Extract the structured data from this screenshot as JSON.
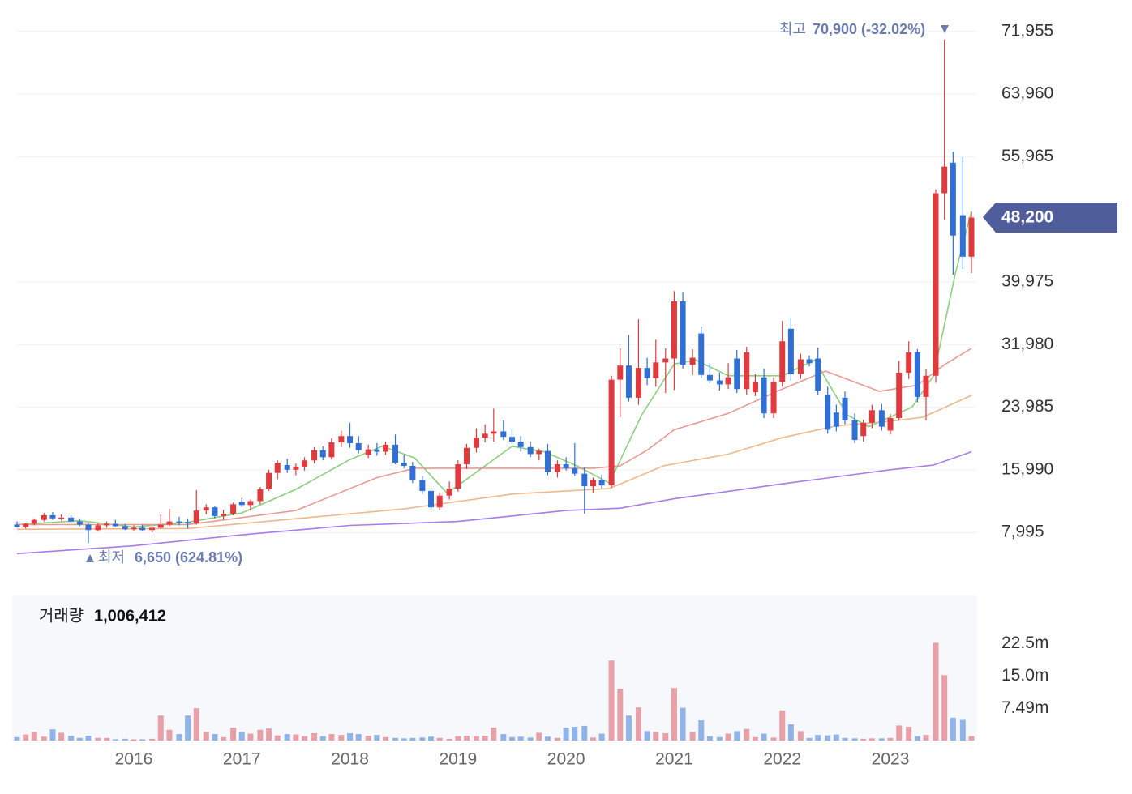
{
  "chart_data": {
    "type": "candlestick",
    "up_color": "#e03a3e",
    "down_color": "#2f6fd6",
    "xlim": [
      2014.875,
      2023.765
    ],
    "xticks": [
      2016,
      2017,
      2018,
      2019,
      2020,
      2021,
      2022,
      2023
    ],
    "ylim": [
      1500,
      73900
    ],
    "yticks": [
      {
        "value": 7995,
        "label": "7,995"
      },
      {
        "value": 15990,
        "label": "15,990"
      },
      {
        "value": 23985,
        "label": "23,985"
      },
      {
        "value": 31980,
        "label": "31,980"
      },
      {
        "value": 39975,
        "label": "39,975"
      },
      {
        "value": 55965,
        "label": "55,965"
      },
      {
        "value": 63960,
        "label": "63,960"
      },
      {
        "value": 71955,
        "label": "71,955"
      }
    ],
    "grid": true,
    "annotations": {
      "high_label": "최고",
      "high_value": "70,900 (-32.02%)",
      "low_label": "최저",
      "low_value": "6,650 (624.81%)",
      "current_price": "48,200"
    },
    "x": [
      2014.92,
      2015.0,
      2015.08,
      2015.17,
      2015.25,
      2015.33,
      2015.42,
      2015.5,
      2015.58,
      2015.67,
      2015.75,
      2015.83,
      2015.92,
      2016.0,
      2016.08,
      2016.17,
      2016.25,
      2016.33,
      2016.42,
      2016.5,
      2016.58,
      2016.67,
      2016.75,
      2016.83,
      2016.92,
      2017.0,
      2017.08,
      2017.17,
      2017.25,
      2017.33,
      2017.42,
      2017.5,
      2017.58,
      2017.67,
      2017.75,
      2017.83,
      2017.92,
      2018.0,
      2018.08,
      2018.17,
      2018.25,
      2018.33,
      2018.42,
      2018.5,
      2018.58,
      2018.67,
      2018.75,
      2018.83,
      2018.92,
      2019.0,
      2019.08,
      2019.17,
      2019.25,
      2019.33,
      2019.42,
      2019.5,
      2019.58,
      2019.67,
      2019.75,
      2019.83,
      2019.92,
      2020.0,
      2020.08,
      2020.17,
      2020.25,
      2020.33,
      2020.42,
      2020.5,
      2020.58,
      2020.67,
      2020.75,
      2020.83,
      2020.92,
      2021.0,
      2021.08,
      2021.17,
      2021.25,
      2021.33,
      2021.42,
      2021.5,
      2021.58,
      2021.67,
      2021.75,
      2021.83,
      2021.92,
      2022.0,
      2022.08,
      2022.17,
      2022.25,
      2022.33,
      2022.42,
      2022.5,
      2022.58,
      2022.67,
      2022.75,
      2022.83,
      2022.92,
      2023.0,
      2023.08,
      2023.17,
      2023.25,
      2023.33,
      2023.42,
      2023.5,
      2023.58,
      2023.67,
      2023.75
    ],
    "candles": [
      [
        9000,
        9400,
        8600,
        8700
      ],
      [
        8700,
        9200,
        8500,
        9100
      ],
      [
        9100,
        9800,
        8900,
        9600
      ],
      [
        9600,
        10500,
        9400,
        10200
      ],
      [
        10200,
        10600,
        9600,
        9800
      ],
      [
        9800,
        10300,
        9500,
        9900
      ],
      [
        9900,
        10200,
        9300,
        9400
      ],
      [
        9400,
        9800,
        8800,
        9000
      ],
      [
        9000,
        9200,
        6650,
        8300
      ],
      [
        8300,
        9200,
        8100,
        8900
      ],
      [
        8900,
        9400,
        8600,
        9100
      ],
      [
        9100,
        9600,
        8700,
        8800
      ],
      [
        8800,
        9100,
        8300,
        8400
      ],
      [
        8400,
        8900,
        8200,
        8600
      ],
      [
        8600,
        9000,
        8200,
        8300
      ],
      [
        8300,
        8800,
        8000,
        8600
      ],
      [
        8600,
        10300,
        8400,
        9000
      ],
      [
        9000,
        11000,
        8800,
        9400
      ],
      [
        9400,
        10000,
        8900,
        9300
      ],
      [
        9300,
        9800,
        8500,
        9200
      ],
      [
        9200,
        13400,
        9000,
        10800
      ],
      [
        10800,
        11600,
        10300,
        11200
      ],
      [
        11200,
        11400,
        9800,
        10100
      ],
      [
        10100,
        10900,
        9700,
        10400
      ],
      [
        10400,
        11800,
        10200,
        11600
      ],
      [
        11900,
        12400,
        11200,
        11500
      ],
      [
        11500,
        12200,
        10800,
        12000
      ],
      [
        12000,
        13800,
        11600,
        13500
      ],
      [
        13500,
        16000,
        13300,
        15600
      ],
      [
        15600,
        17200,
        14800,
        16900
      ],
      [
        16600,
        17400,
        15600,
        16000
      ],
      [
        16000,
        16800,
        15300,
        16400
      ],
      [
        16400,
        17600,
        15900,
        17200
      ],
      [
        17200,
        18900,
        16800,
        18500
      ],
      [
        18500,
        19000,
        17200,
        17600
      ],
      [
        17600,
        20000,
        17300,
        19500
      ],
      [
        19500,
        21000,
        18900,
        20300
      ],
      [
        20300,
        22000,
        18800,
        19400
      ],
      [
        19400,
        20300,
        18100,
        18500
      ],
      [
        17900,
        19200,
        17500,
        18600
      ],
      [
        18600,
        19400,
        17800,
        18300
      ],
      [
        18300,
        19600,
        17900,
        19200
      ],
      [
        19200,
        20500,
        16700,
        16900
      ],
      [
        16900,
        17900,
        16200,
        16500
      ],
      [
        16500,
        17000,
        14300,
        14700
      ],
      [
        14700,
        15200,
        12900,
        13300
      ],
      [
        13300,
        13700,
        10900,
        11200
      ],
      [
        11200,
        13100,
        10800,
        12700
      ],
      [
        12700,
        14500,
        12200,
        13600
      ],
      [
        13600,
        17200,
        13200,
        16700
      ],
      [
        16700,
        19300,
        16100,
        18800
      ],
      [
        18800,
        21300,
        18200,
        20100
      ],
      [
        20100,
        21800,
        19500,
        20600
      ],
      [
        20600,
        23800,
        19600,
        20900
      ],
      [
        20900,
        22300,
        19800,
        20200
      ],
      [
        20200,
        21200,
        19300,
        19600
      ],
      [
        19600,
        20300,
        18300,
        18900
      ],
      [
        18900,
        19600,
        17600,
        18000
      ],
      [
        18000,
        18700,
        17200,
        18400
      ],
      [
        18400,
        19300,
        15300,
        15700
      ],
      [
        15700,
        17200,
        15000,
        16700
      ],
      [
        16700,
        17600,
        15900,
        16200
      ],
      [
        16200,
        19400,
        15200,
        15500
      ],
      [
        15500,
        16300,
        10400,
        13900
      ],
      [
        13900,
        15000,
        13100,
        14700
      ],
      [
        14700,
        15400,
        13600,
        14000
      ],
      [
        14000,
        28000,
        13700,
        27500
      ],
      [
        27500,
        31500,
        22700,
        29300
      ],
      [
        29300,
        33200,
        24700,
        25200
      ],
      [
        25200,
        35200,
        24300,
        29000
      ],
      [
        29000,
        30300,
        26800,
        27700
      ],
      [
        27700,
        32600,
        26600,
        29700
      ],
      [
        29700,
        31500,
        25800,
        30200
      ],
      [
        30200,
        38800,
        26200,
        37500
      ],
      [
        37500,
        38700,
        28900,
        29400
      ],
      [
        29400,
        31400,
        28100,
        30300
      ],
      [
        33400,
        34300,
        27700,
        28100
      ],
      [
        28100,
        29600,
        27000,
        27400
      ],
      [
        27400,
        28400,
        26100,
        26900
      ],
      [
        26900,
        29600,
        26300,
        27800
      ],
      [
        30200,
        31300,
        25800,
        26300
      ],
      [
        26300,
        31700,
        25600,
        31000
      ],
      [
        25900,
        28200,
        25400,
        27200
      ],
      [
        27800,
        28900,
        22600,
        23200
      ],
      [
        23200,
        27800,
        22600,
        27200
      ],
      [
        27200,
        35000,
        26600,
        32400
      ],
      [
        34000,
        35400,
        27400,
        28200
      ],
      [
        28200,
        30800,
        27600,
        30100
      ],
      [
        30100,
        30600,
        29200,
        29600
      ],
      [
        30200,
        31600,
        25600,
        26100
      ],
      [
        25600,
        26600,
        20600,
        21100
      ],
      [
        23300,
        24300,
        20900,
        21500
      ],
      [
        25200,
        26000,
        21800,
        22300
      ],
      [
        22300,
        23200,
        19400,
        19800
      ],
      [
        20300,
        22400,
        19600,
        22000
      ],
      [
        22000,
        24300,
        21300,
        23600
      ],
      [
        23600,
        24400,
        21000,
        21500
      ],
      [
        21000,
        23100,
        20500,
        22600
      ],
      [
        22600,
        29900,
        22300,
        28400
      ],
      [
        28400,
        32400,
        27600,
        31000
      ],
      [
        31000,
        31400,
        24600,
        25300
      ],
      [
        25300,
        28800,
        22300,
        28000
      ],
      [
        28000,
        51800,
        27100,
        51300
      ],
      [
        51300,
        70900,
        47900,
        54700
      ],
      [
        55200,
        56600,
        40900,
        45900
      ],
      [
        48500,
        55900,
        41600,
        43200
      ],
      [
        43200,
        48900,
        41100,
        48200
      ]
    ],
    "moving_averages": [
      {
        "color": "#8ccf7e",
        "x": [
          2014.92,
          2015.5,
          2016.0,
          2016.5,
          2017.0,
          2017.5,
          2018.0,
          2018.3,
          2018.6,
          2018.9,
          2019.2,
          2019.5,
          2019.8,
          2020.1,
          2020.4,
          2020.7,
          2021.0,
          2021.2,
          2021.5,
          2022.0,
          2022.3,
          2022.6,
          2022.8,
          2023.2,
          2023.4,
          2023.6,
          2023.75
        ],
        "values": [
          9000,
          9500,
          8700,
          9300,
          10500,
          13500,
          17300,
          19000,
          17500,
          13000,
          16000,
          19000,
          18300,
          16500,
          14300,
          23000,
          29500,
          30000,
          28000,
          28000,
          30000,
          23000,
          21500,
          24000,
          28000,
          41000,
          49000
        ]
      },
      {
        "color": "#e79a94",
        "x": [
          2014.92,
          2016.5,
          2017.5,
          2018.25,
          2018.6,
          2019.5,
          2020.25,
          2020.5,
          2020.75,
          2021.0,
          2021.5,
          2022.0,
          2022.4,
          2022.9,
          2023.25,
          2023.5,
          2023.75
        ],
        "values": [
          9000,
          9000,
          10800,
          15000,
          16200,
          16200,
          16200,
          16500,
          18500,
          21100,
          23200,
          26300,
          28600,
          26000,
          26800,
          29400,
          31500
        ]
      },
      {
        "color": "#eab98a",
        "x": [
          2014.92,
          2016.5,
          2017.5,
          2018.5,
          2019.5,
          2020.4,
          2020.9,
          2021.5,
          2022.0,
          2022.5,
          2023.0,
          2023.3,
          2023.75
        ],
        "values": [
          8400,
          8500,
          9750,
          11000,
          12900,
          13600,
          16500,
          18000,
          20100,
          21600,
          22200,
          22700,
          25500
        ]
      },
      {
        "color": "#a77de6",
        "x": [
          2014.92,
          2016.0,
          2017.0,
          2018.0,
          2019.0,
          2020.0,
          2020.5,
          2021.0,
          2022.0,
          2023.0,
          2023.4,
          2023.75
        ],
        "values": [
          5300,
          6300,
          7700,
          8900,
          9400,
          10800,
          11100,
          12300,
          14200,
          16000,
          16600,
          18300
        ]
      }
    ],
    "volume": {
      "label": "거래량",
      "current": "1,006,412",
      "up_color": "#e8a0a6",
      "down_color": "#90b4ea",
      "ylim": [
        0,
        33700000
      ],
      "yticks": [
        {
          "value": 7490000,
          "label": "7.49m"
        },
        {
          "value": 15000000,
          "label": "15.0m"
        },
        {
          "value": 22500000,
          "label": "22.5m"
        }
      ],
      "values": [
        800000,
        1400000,
        2000000,
        900000,
        2600000,
        1800000,
        1100000,
        600000,
        1100000,
        600000,
        600000,
        300000,
        400000,
        300000,
        300000,
        400000,
        5800000,
        2500000,
        1500000,
        5800000,
        7500000,
        2000000,
        1500000,
        800000,
        3000000,
        2000000,
        1600000,
        2500000,
        2800000,
        1200000,
        1500000,
        1400000,
        1000000,
        1700000,
        1000000,
        1500000,
        1300000,
        1700000,
        1500000,
        1100000,
        1300000,
        800000,
        600000,
        500000,
        600000,
        700000,
        900000,
        600000,
        400000,
        1000000,
        1100000,
        1000000,
        1100000,
        3000000,
        1500000,
        800000,
        900000,
        700000,
        1800000,
        900000,
        600000,
        3000000,
        3200000,
        3400000,
        700000,
        1600000,
        18600000,
        12000000,
        5800000,
        7700000,
        2200000,
        2000000,
        1700000,
        12200000,
        7600000,
        2000000,
        4700000,
        1000000,
        800000,
        1600000,
        2200000,
        2700000,
        800000,
        1600000,
        700000,
        7000000,
        3800000,
        2200000,
        600000,
        1300000,
        1200000,
        1400000,
        600000,
        500000,
        400000,
        500000,
        500000,
        600000,
        3500000,
        3200000,
        1000000,
        1300000,
        22700000,
        15200000,
        5300000,
        4800000,
        1000000
      ]
    }
  }
}
